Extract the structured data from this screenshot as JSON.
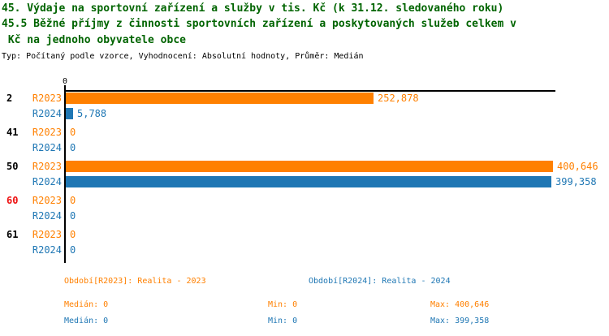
{
  "title": {
    "line1": "45. Výdaje na sportovní zařízení a služby v tis. Kč (k 31.12. sledovaného roku)",
    "line2": "45.5 Běžné příjmy z činnosti sportovních zařízení a poskytovaných služeb celkem v",
    "line3": " Kč na jednoho obyvatele obce",
    "meta": "Typ: Počítaný podle vzorce, Vyhodnocení: Absolutní hodnoty, Průměr: Medián"
  },
  "colors": {
    "title": "#006400",
    "r2023": "#FF8000",
    "r2024": "#1F77B4",
    "highlight_category": "#EE1111",
    "axis": "#000000"
  },
  "chart_data": {
    "type": "bar",
    "orientation": "horizontal",
    "title": "45. Výdaje na sportovní zařízení a služby v tis. Kč (k 31.12. sledovaného roku) — 45.5 Běžné příjmy z činnosti sportovních zařízení a poskytovaných služeb celkem v Kč na jednoho obyvatele obce",
    "x_axis": {
      "zero_label": "0",
      "xlim": [
        0,
        400646
      ]
    },
    "grid": false,
    "legend_position": "bottom",
    "categories": [
      "2",
      "41",
      "50",
      "60",
      "61"
    ],
    "category_colors": [
      "#000000",
      "#000000",
      "#000000",
      "#EE1111",
      "#000000"
    ],
    "series": [
      {
        "name": "R2023",
        "color": "#FF8000",
        "values": [
          252878,
          0,
          400646,
          0,
          0
        ],
        "labels": [
          "252,878",
          "0",
          "400,646",
          "0",
          "0"
        ]
      },
      {
        "name": "R2024",
        "color": "#1F77B4",
        "values": [
          5788,
          0,
          399358,
          0,
          0
        ],
        "labels": [
          "5,788",
          "0",
          "399,358",
          "0",
          "0"
        ]
      }
    ]
  },
  "legend": {
    "r2023": {
      "period": "Období[R2023]: Realita - 2023",
      "median": "Medián: 0",
      "min": "Min: 0",
      "max": "Max: 400,646"
    },
    "r2024": {
      "period": "Období[R2024]: Realita - 2024",
      "median": "Medián: 0",
      "min": "Min: 0",
      "max": "Max: 399,358"
    }
  }
}
